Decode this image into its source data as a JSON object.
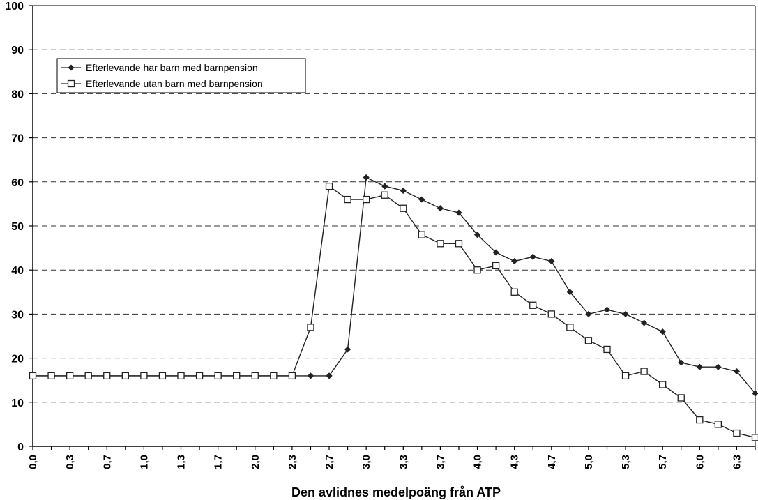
{
  "chart_data": {
    "type": "line",
    "title": "",
    "xlabel": "Den avlidnes medelpoäng från ATP",
    "ylabel": "",
    "ylim": [
      0,
      100
    ],
    "yticks": [
      0,
      10,
      20,
      30,
      40,
      50,
      60,
      70,
      80,
      90,
      100
    ],
    "grid": "horizontal dashed",
    "legend_position": "top-left",
    "x": [
      "0,0",
      "0,2",
      "0,3",
      "0,5",
      "0,7",
      "0,8",
      "1,0",
      "1,2",
      "1,3",
      "1,5",
      "1,7",
      "1,8",
      "2,0",
      "2,2",
      "2,3",
      "2,5",
      "2,7",
      "2,8",
      "3,0",
      "3,2",
      "3,3",
      "3,5",
      "3,7",
      "3,8",
      "4,0",
      "4,2",
      "4,3",
      "4,5",
      "4,7",
      "4,8",
      "5,0",
      "5,2",
      "5,3",
      "5,5",
      "5,7",
      "5,8",
      "6,0",
      "6,2",
      "6,3",
      "6,5"
    ],
    "x_tick_labels": [
      "0,0",
      "",
      "0,3",
      "",
      "0,7",
      "",
      "1,0",
      "",
      "1,3",
      "",
      "1,7",
      "",
      "2,0",
      "",
      "2,3",
      "",
      "2,7",
      "",
      "3,0",
      "",
      "3,3",
      "",
      "3,7",
      "",
      "4,0",
      "",
      "4,3",
      "",
      "4,7",
      "",
      "5,0",
      "",
      "5,3",
      "",
      "5,7",
      "",
      "6,0",
      "",
      "6,3",
      ""
    ],
    "series": [
      {
        "name": "Efterlevande har barn med barnpension",
        "marker": "filled-diamond",
        "color": "#222222",
        "values": [
          16,
          16,
          16,
          16,
          16,
          16,
          16,
          16,
          16,
          16,
          16,
          16,
          16,
          16,
          16,
          16,
          16,
          22,
          61,
          59,
          58,
          56,
          54,
          53,
          48,
          44,
          42,
          43,
          42,
          35,
          30,
          31,
          30,
          28,
          26,
          19,
          18,
          18,
          17,
          12
        ]
      },
      {
        "name": "Efterlevande utan barn med barnpension",
        "marker": "open-square",
        "color": "#222222",
        "values": [
          16,
          16,
          16,
          16,
          16,
          16,
          16,
          16,
          16,
          16,
          16,
          16,
          16,
          16,
          16,
          27,
          59,
          56,
          56,
          57,
          54,
          48,
          46,
          46,
          40,
          41,
          35,
          32,
          30,
          27,
          24,
          22,
          16,
          17,
          14,
          11,
          6,
          5,
          3,
          2
        ]
      }
    ]
  }
}
